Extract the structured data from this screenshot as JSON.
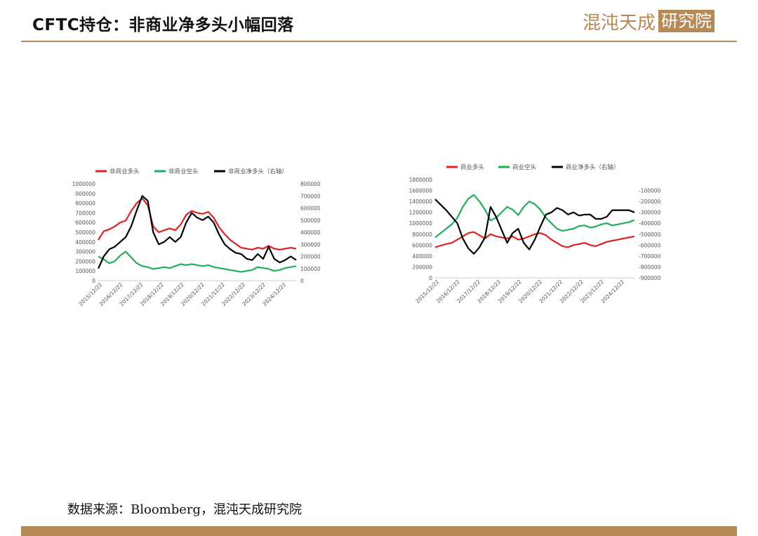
{
  "header": {
    "title": "CFTC持仓：非商业净多头小幅回落",
    "logo_text": "混沌天成",
    "logo_box_text": "研究院"
  },
  "footer": {
    "source": "数据来源：Bloomberg，混沌天成研究院"
  },
  "colors": {
    "accent": "#b58a57",
    "red": "#e02020",
    "green": "#1fae5a",
    "black": "#000000"
  },
  "chart_data": [
    {
      "type": "line",
      "x_labels": [
        "2015/12/22",
        "2016/12/22",
        "2017/12/22",
        "2018/12/22",
        "2019/12/22",
        "2020/12/22",
        "2021/12/22",
        "2022/12/22",
        "2023/12/22",
        "2024/12/22"
      ],
      "left_ylim": [
        0,
        1000000
      ],
      "left_ticks": [
        "0",
        "100000",
        "200000",
        "300000",
        "400000",
        "500000",
        "600000",
        "700000",
        "800000",
        "900000",
        "1000000"
      ],
      "right_ylim": [
        0,
        800000
      ],
      "right_ticks": [
        "0",
        "100000",
        "200000",
        "300000",
        "400000",
        "500000",
        "600000",
        "700000",
        "800000"
      ],
      "legend": "top",
      "series": [
        {
          "name": "非商业多头",
          "color": "#e02020",
          "axis": "left",
          "values": [
            420000,
            510000,
            530000,
            560000,
            600000,
            620000,
            720000,
            800000,
            850000,
            780000,
            560000,
            500000,
            520000,
            540000,
            520000,
            580000,
            680000,
            720000,
            700000,
            690000,
            710000,
            650000,
            550000,
            480000,
            420000,
            380000,
            340000,
            330000,
            320000,
            340000,
            330000,
            360000,
            330000,
            320000,
            330000,
            340000,
            330000
          ]
        },
        {
          "name": "非商业空头",
          "color": "#1fae5a",
          "axis": "left",
          "values": [
            250000,
            220000,
            180000,
            200000,
            260000,
            300000,
            240000,
            180000,
            150000,
            140000,
            120000,
            130000,
            140000,
            130000,
            150000,
            170000,
            160000,
            170000,
            160000,
            150000,
            160000,
            140000,
            130000,
            120000,
            110000,
            100000,
            90000,
            100000,
            110000,
            140000,
            130000,
            120000,
            100000,
            110000,
            130000,
            140000,
            150000
          ]
        },
        {
          "name": "非商业净多头（右轴）",
          "color": "#000000",
          "axis": "right",
          "values": [
            100000,
            200000,
            260000,
            280000,
            320000,
            360000,
            450000,
            580000,
            700000,
            660000,
            400000,
            300000,
            320000,
            360000,
            320000,
            360000,
            480000,
            560000,
            520000,
            500000,
            530000,
            480000,
            380000,
            300000,
            260000,
            230000,
            220000,
            180000,
            170000,
            220000,
            180000,
            280000,
            180000,
            150000,
            170000,
            200000,
            170000
          ]
        }
      ]
    },
    {
      "type": "line",
      "x_labels": [
        "2015/12/22",
        "2016/12/22",
        "2017/12/22",
        "2018/12/22",
        "2019/12/22",
        "2020/12/22",
        "2021/12/22",
        "2022/12/22",
        "2023/12/22",
        "2024/12/22"
      ],
      "left_ylim": [
        0,
        1800000
      ],
      "left_ticks": [
        "0",
        "200000",
        "400000",
        "600000",
        "800000",
        "1000000",
        "1200000",
        "1400000",
        "1600000",
        "1800000"
      ],
      "right_ylim": [
        -900000,
        0
      ],
      "right_ticks": [
        "-900000",
        "-800000",
        "-700000",
        "-600000",
        "-500000",
        "-400000",
        "-300000",
        "-200000",
        "-100000"
      ],
      "legend": "top",
      "series": [
        {
          "name": "商业多头",
          "color": "#e02020",
          "axis": "left",
          "values": [
            560000,
            590000,
            620000,
            640000,
            700000,
            760000,
            820000,
            840000,
            780000,
            720000,
            800000,
            760000,
            740000,
            720000,
            760000,
            700000,
            720000,
            760000,
            800000,
            820000,
            780000,
            700000,
            640000,
            580000,
            560000,
            600000,
            620000,
            640000,
            600000,
            580000,
            620000,
            660000,
            680000,
            700000,
            720000,
            740000,
            760000
          ]
        },
        {
          "name": "商业空头",
          "color": "#1fae5a",
          "axis": "left",
          "values": [
            740000,
            820000,
            900000,
            980000,
            1100000,
            1300000,
            1450000,
            1520000,
            1400000,
            1250000,
            1050000,
            1100000,
            1200000,
            1300000,
            1250000,
            1150000,
            1300000,
            1400000,
            1350000,
            1250000,
            1100000,
            1000000,
            900000,
            860000,
            880000,
            900000,
            950000,
            960000,
            920000,
            940000,
            980000,
            1000000,
            960000,
            980000,
            1000000,
            1020000,
            1060000
          ]
        },
        {
          "name": "商业净多头（右轴）",
          "color": "#000000",
          "axis": "right",
          "values": [
            -180000,
            -230000,
            -280000,
            -340000,
            -400000,
            -540000,
            -630000,
            -680000,
            -620000,
            -530000,
            -250000,
            -340000,
            -460000,
            -580000,
            -490000,
            -450000,
            -580000,
            -640000,
            -550000,
            -430000,
            -320000,
            -300000,
            -260000,
            -280000,
            -320000,
            -300000,
            -330000,
            -320000,
            -320000,
            -360000,
            -360000,
            -340000,
            -280000,
            -280000,
            -280000,
            -280000,
            -300000
          ]
        }
      ]
    }
  ]
}
